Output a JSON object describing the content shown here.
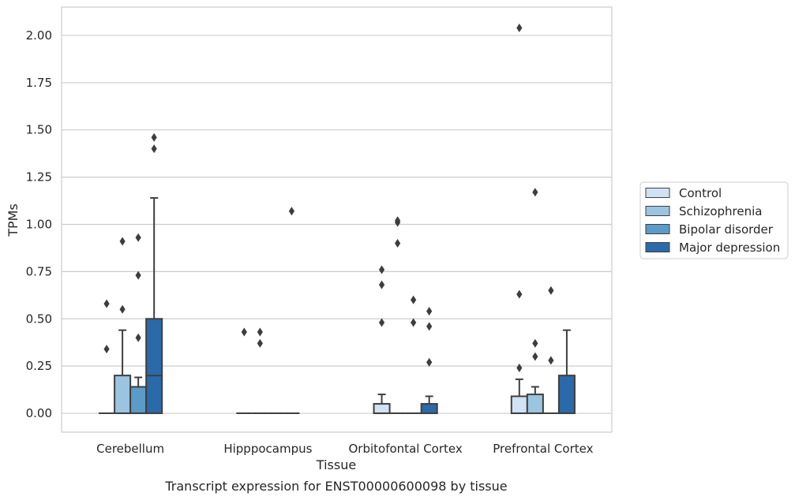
{
  "chart_data": {
    "type": "box",
    "title": "",
    "caption": "Transcript expression for ENST00000600098 by tissue",
    "xlabel": "Tissue",
    "ylabel": "TPMs",
    "ylim": [
      -0.1,
      2.15
    ],
    "yticks": [
      0.0,
      0.25,
      0.5,
      0.75,
      1.0,
      1.25,
      1.5,
      1.75,
      2.0
    ],
    "ytick_labels": [
      "0.00",
      "0.25",
      "0.50",
      "0.75",
      "1.00",
      "1.25",
      "1.50",
      "1.75",
      "2.00"
    ],
    "grid": "horizontal",
    "legend_position": "right",
    "categories": [
      "Cerebellum",
      "Hipppocampus",
      "Orbitofontal Cortex",
      "Prefrontal Cortex"
    ],
    "series": [
      {
        "name": "Control",
        "color": "#d1e2f2",
        "boxes": [
          {
            "q1": 0.0,
            "median": 0.0,
            "q3": 0.0,
            "whisker_low": 0.0,
            "whisker_high": 0.0,
            "outliers": [
              0.34,
              0.58
            ]
          },
          {
            "q1": 0.0,
            "median": 0.0,
            "q3": 0.0,
            "whisker_low": 0.0,
            "whisker_high": 0.0,
            "outliers": [
              0.43
            ]
          },
          {
            "q1": 0.0,
            "median": 0.0,
            "q3": 0.05,
            "whisker_low": 0.0,
            "whisker_high": 0.1,
            "outliers": [
              0.48,
              0.68,
              0.76
            ]
          },
          {
            "q1": 0.0,
            "median": 0.0,
            "q3": 0.09,
            "whisker_low": 0.0,
            "whisker_high": 0.18,
            "outliers": [
              0.24,
              0.63,
              2.04
            ]
          }
        ]
      },
      {
        "name": "Schizophrenia",
        "color": "#9ac4df",
        "boxes": [
          {
            "q1": 0.0,
            "median": 0.0,
            "q3": 0.2,
            "whisker_low": 0.0,
            "whisker_high": 0.44,
            "outliers": [
              0.55,
              0.91
            ]
          },
          {
            "q1": 0.0,
            "median": 0.0,
            "q3": 0.0,
            "whisker_low": 0.0,
            "whisker_high": 0.0,
            "outliers": [
              0.37,
              0.43
            ]
          },
          {
            "q1": 0.0,
            "median": 0.0,
            "q3": 0.0,
            "whisker_low": 0.0,
            "whisker_high": 0.0,
            "outliers": [
              0.9,
              1.01,
              1.02
            ]
          },
          {
            "q1": 0.0,
            "median": 0.0,
            "q3": 0.1,
            "whisker_low": 0.0,
            "whisker_high": 0.14,
            "outliers": [
              0.3,
              0.37,
              1.17
            ]
          }
        ]
      },
      {
        "name": "Bipolar disorder",
        "color": "#5a9bc8",
        "boxes": [
          {
            "q1": 0.0,
            "median": 0.0,
            "q3": 0.14,
            "whisker_low": 0.0,
            "whisker_high": 0.19,
            "outliers": [
              0.4,
              0.73,
              0.93
            ]
          },
          {
            "q1": 0.0,
            "median": 0.0,
            "q3": 0.0,
            "whisker_low": 0.0,
            "whisker_high": 0.0,
            "outliers": []
          },
          {
            "q1": 0.0,
            "median": 0.0,
            "q3": 0.0,
            "whisker_low": 0.0,
            "whisker_high": 0.0,
            "outliers": [
              0.48,
              0.6
            ]
          },
          {
            "q1": 0.0,
            "median": 0.0,
            "q3": 0.0,
            "whisker_low": 0.0,
            "whisker_high": 0.0,
            "outliers": [
              0.28,
              0.65
            ]
          }
        ]
      },
      {
        "name": "Major depression",
        "color": "#2a6aa8",
        "boxes": [
          {
            "q1": 0.0,
            "median": 0.2,
            "q3": 0.5,
            "whisker_low": 0.0,
            "whisker_high": 1.14,
            "outliers": [
              1.4,
              1.46
            ]
          },
          {
            "q1": 0.0,
            "median": 0.0,
            "q3": 0.0,
            "whisker_low": 0.0,
            "whisker_high": 0.0,
            "outliers": [
              1.07
            ]
          },
          {
            "q1": 0.0,
            "median": 0.0,
            "q3": 0.05,
            "whisker_low": 0.0,
            "whisker_high": 0.09,
            "outliers": [
              0.27,
              0.46,
              0.54
            ]
          },
          {
            "q1": 0.0,
            "median": 0.0,
            "q3": 0.2,
            "whisker_low": 0.0,
            "whisker_high": 0.44,
            "outliers": []
          }
        ]
      }
    ]
  }
}
